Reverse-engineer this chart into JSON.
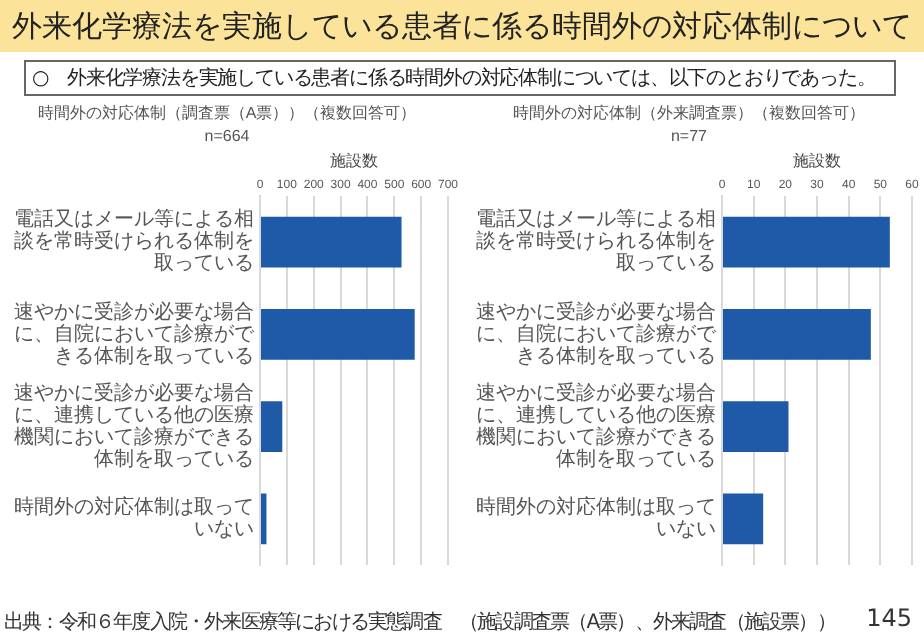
{
  "chart_data": [
    {
      "type": "bar",
      "orientation": "horizontal",
      "title": "時間外の対応体制（調査票（A票））（複数回答可）",
      "subtitle": "n=664",
      "xlabel": "施設数",
      "categories": [
        "電話又はメール等による相談を常時受けられる体制を取っている",
        "速やかに受診が必要な場合に、自院において診療ができる体制を取っている",
        "速やかに受診が必要な場合に、連携している他の医療機関において診療ができる体制を取っている",
        "時間外の対応体制は取っていない"
      ],
      "values": [
        527,
        576,
        83,
        24
      ],
      "color": "#1e5aa8",
      "xlim": [
        0,
        700
      ],
      "xticks": [
        0,
        100,
        200,
        300,
        400,
        500,
        600,
        700
      ],
      "grid": "x",
      "legend": false,
      "annotations": [
        "外来化学療法を実施している患者に係る時間外の対応体制について",
        "○　外来化学療法を実施している患者に係る時間外の対応体制については、以下のとおりであった。"
      ]
    },
    {
      "type": "bar",
      "orientation": "horizontal",
      "title": "時間外の対応体制（外来調査票）（複数回答可）",
      "subtitle": "n=77",
      "xlabel": "施設数",
      "categories": [
        "電話又はメール等による相談を常時受けられる体制を取っている",
        "速やかに受診が必要な場合に、自院において診療ができる体制を取っている",
        "速やかに受診が必要な場合に、連携している他の医療機関において診療ができる体制を取っている",
        "時間外の対応体制は取っていない"
      ],
      "values": [
        53,
        47,
        21,
        13
      ],
      "color": "#1e5aa8",
      "xlim": [
        0,
        60
      ],
      "xticks": [
        0,
        10,
        20,
        30,
        40,
        50,
        60
      ],
      "grid": "x",
      "legend": false,
      "annotations": [
        "出典：令和６年度入院・外来医療等における実態調査　（施設調査票（A票）、外来調査（施設票））",
        "145"
      ]
    }
  ]
}
